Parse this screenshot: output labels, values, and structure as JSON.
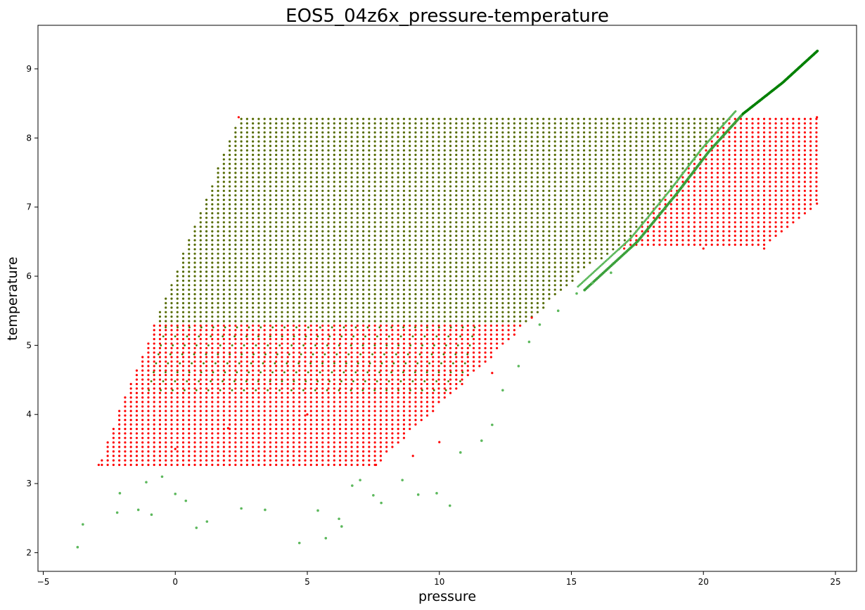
{
  "chart_data": {
    "type": "scatter",
    "title": "EOS5_04z6x_pressure-temperature",
    "xlabel": "pressure",
    "ylabel": "temperature",
    "xlim": [
      -5.2,
      25.8
    ],
    "ylim": [
      1.73,
      9.63
    ],
    "xticks": [
      -5,
      0,
      5,
      10,
      15,
      20,
      25
    ],
    "yticks": [
      2,
      3,
      4,
      5,
      6,
      7,
      8,
      9
    ],
    "grid": false,
    "legend": "none",
    "colors": {
      "red": "#ff0000",
      "green": "#2ca02c",
      "overlap": "#556b00",
      "green_line": "#008000"
    },
    "series": [
      {
        "color": "#ff0000",
        "description_points": "table grid",
        "region_polygon": [
          [
            -2.9,
            3.27
          ],
          [
            7.6,
            3.27
          ],
          [
            15.8,
            6.2
          ],
          [
            17.0,
            6.4
          ],
          [
            22.3,
            6.4
          ],
          [
            24.3,
            7.05
          ],
          [
            24.3,
            8.3
          ],
          [
            2.4,
            8.3
          ],
          [
            -2.5,
            3.7
          ]
        ],
        "sample_points": [
          [
            -2.9,
            3.27
          ],
          [
            0,
            3.5
          ],
          [
            2.0,
            3.8
          ],
          [
            5.0,
            4.0
          ],
          [
            7.6,
            3.27
          ],
          [
            9.0,
            3.4
          ],
          [
            10.0,
            3.6
          ],
          [
            12.0,
            4.6
          ],
          [
            13.5,
            5.4
          ],
          [
            17.0,
            6.4
          ],
          [
            20.0,
            6.4
          ],
          [
            22.3,
            6.4
          ],
          [
            24.3,
            7.05
          ],
          [
            24.3,
            8.3
          ],
          [
            2.4,
            8.3
          ]
        ]
      },
      {
        "color": "#2ca02c",
        "region_polygon": [
          [
            -2.5,
            3.7
          ],
          [
            2.4,
            8.3
          ],
          [
            21.0,
            8.3
          ],
          [
            16.0,
            6.0
          ],
          [
            13.0,
            5.0
          ],
          [
            12.0,
            4.3
          ],
          [
            10.5,
            3.9
          ],
          [
            9.0,
            3.27
          ],
          [
            -2.9,
            3.27
          ]
        ],
        "line_points": [
          [
            15.5,
            5.8
          ],
          [
            17.5,
            6.5
          ],
          [
            19.0,
            7.2
          ],
          [
            20.2,
            7.8
          ],
          [
            21.5,
            8.35
          ],
          [
            23.0,
            8.8
          ],
          [
            24.35,
            9.27
          ]
        ],
        "scattered_points": [
          [
            -3.7,
            2.08
          ],
          [
            -3.5,
            2.41
          ],
          [
            -2.2,
            2.58
          ],
          [
            -2.1,
            2.86
          ],
          [
            -1.4,
            2.62
          ],
          [
            -1.1,
            3.02
          ],
          [
            -0.9,
            2.55
          ],
          [
            -0.5,
            3.1
          ],
          [
            0.0,
            2.85
          ],
          [
            0.4,
            2.75
          ],
          [
            0.8,
            2.36
          ],
          [
            1.2,
            2.45
          ],
          [
            2.5,
            2.64
          ],
          [
            3.4,
            2.62
          ],
          [
            4.7,
            2.14
          ],
          [
            5.4,
            2.61
          ],
          [
            5.7,
            2.21
          ],
          [
            6.2,
            2.49
          ],
          [
            6.3,
            2.38
          ],
          [
            6.7,
            2.97
          ],
          [
            7.0,
            3.05
          ],
          [
            7.5,
            2.83
          ],
          [
            7.8,
            2.72
          ],
          [
            8.6,
            3.05
          ],
          [
            9.2,
            2.84
          ],
          [
            9.9,
            2.86
          ],
          [
            10.4,
            2.68
          ],
          [
            10.8,
            3.45
          ],
          [
            11.6,
            3.62
          ],
          [
            12.0,
            3.85
          ],
          [
            12.4,
            4.35
          ],
          [
            13.0,
            4.7
          ],
          [
            13.4,
            5.05
          ],
          [
            13.8,
            5.3
          ],
          [
            14.5,
            5.5
          ],
          [
            15.2,
            5.75
          ],
          [
            15.8,
            5.9
          ],
          [
            16.5,
            6.05
          ]
        ]
      }
    ]
  }
}
